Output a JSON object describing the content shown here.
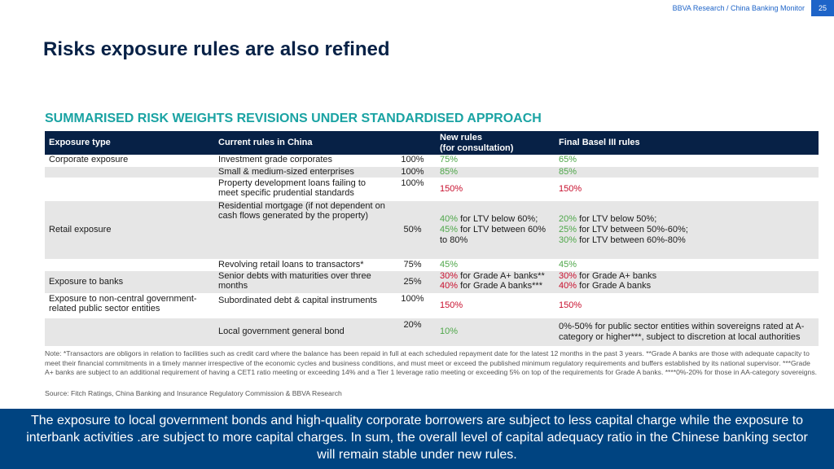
{
  "header": {
    "source": "BBVA Research / China Banking Monitor",
    "page_number": "25"
  },
  "page_title": "Risks exposure rules are also refined",
  "section_title": "SUMMARISED RISK WEIGHTS REVISIONS UNDER STANDARDISED APPROACH",
  "table": {
    "headers": {
      "exposure_type": "Exposure type",
      "current_rules": "Current rules in China",
      "new_rules_line1": "New rules",
      "new_rules_line2": "(for consultation)",
      "final_basel": "Final Basel III rules"
    },
    "rows": [
      {
        "exposure": "Corporate exposure",
        "current": "Investment grade corporates",
        "pct": "100%",
        "new": "75%",
        "final": "65%"
      },
      {
        "exposure": "",
        "current": "Small & medium-sized enterprises",
        "pct": "100%",
        "new": "85%",
        "final": "85%"
      },
      {
        "exposure": "",
        "current": "Property development loans failing to meet specific prudential standards",
        "pct": "100%",
        "new": "150%",
        "final": "150%"
      },
      {
        "exposure": "Retail exposure",
        "current": "Residential mortgage (if not dependent on cash flows generated by the property)",
        "pct": "50%",
        "new_a_pct": "40%",
        "new_a_txt": " for LTV below 60%;",
        "new_b_pct": "45%",
        "new_b_txt": " for LTV between 60%",
        "new_c_txt": "to 80%",
        "final_a_pct": "20%",
        "final_a_txt": " for LTV below 50%;",
        "final_b_pct": "25%",
        "final_b_txt": " for LTV between 50%-60%;",
        "final_c_pct": "30%",
        "final_c_txt": " for LTV between 60%-80%"
      },
      {
        "exposure": "",
        "current": "Revolving retail loans to transactors*",
        "pct": "75%",
        "new": "45%",
        "final": "45%"
      },
      {
        "exposure": "Exposure to banks",
        "current": "Senior debts with maturities over three months",
        "pct": "25%",
        "new_a_pct": "30%",
        "new_a_txt": " for Grade A+ banks**",
        "new_b_pct": "40%",
        "new_b_txt": " for Grade A banks***",
        "final_a_pct": "30%",
        "final_a_txt": " for Grade A+ banks",
        "final_b_pct": "40%",
        "final_b_txt": " for Grade A banks"
      },
      {
        "exposure": "Exposure to non-central government-related public sector entities",
        "current": "Subordinated debt & capital instruments",
        "pct": "100%",
        "new": "150%",
        "final": "150%"
      },
      {
        "exposure": "",
        "current": "Local government general bond",
        "pct": "20%",
        "new": "10%",
        "final": "0%-50% for public sector entities within sovereigns rated at A-category or higher***, subject to discretion at local authorities"
      }
    ]
  },
  "note": "Note: *Transactors are obligors in relation to facilities such as credit card where the balance has been repaid in full at each scheduled repayment date for the latest 12 months in the past 3 years. **Grade A banks are those with adequate capacity to meet their financial commitments in a timely manner irrespective of the economic cycles and business conditions, and must meet or exceed the published minimum regulatory requirements and buffers established by its national supervisor. ***Grade A+ banks are subject to an additional requirement of having a CET1 ratio meeting or exceeding 14% and a Tier 1 leverage ratio meeting  or exceeding 5% on top of the requirements for Grade A banks. ****0%-20% for those in AA-category sovereigns.",
  "source": "Source: Fitch Ratings, China Banking and Insurance Regulatory Commission & BBVA Research",
  "banner": "The exposure to local government bonds and high-quality corporate borrowers are subject to less capital charge while the exposure to interbank activities .are subject to more capital charges. In sum, the overall level of capital adequacy ratio in the Chinese banking sector will remain stable under new rules.",
  "colors": {
    "navy": "#072146",
    "teal": "#1aa3a3",
    "green": "#4fa74a",
    "red": "#c8102e",
    "banner_blue": "#004481"
  }
}
